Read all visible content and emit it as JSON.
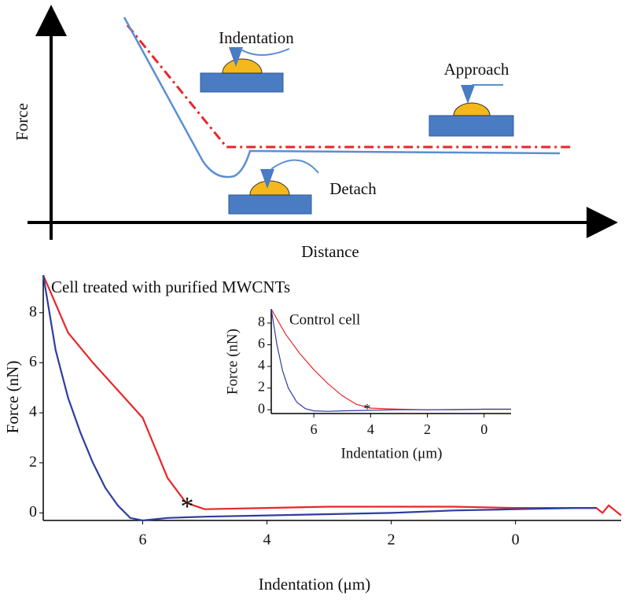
{
  "schematic": {
    "y_label": "Force",
    "x_label": "Distance",
    "labels": [
      "Indentation",
      "Approach",
      "Detach"
    ]
  },
  "chart_data": [
    {
      "type": "line",
      "title": "Cell treated with purified MWCNTs",
      "x_label": "Indentation (μm)",
      "y_label": "Force (nN)",
      "annotation": "*",
      "xlim": [
        7.6,
        -1.7
      ],
      "ylim": [
        -0.3,
        9.5
      ],
      "xticks": [
        6,
        4,
        2,
        0
      ],
      "yticks": [
        0,
        2,
        4,
        6,
        8
      ],
      "series": [
        {
          "color": "#e8262a",
          "x": [
            7.6,
            7.2,
            6.8,
            6.4,
            6.0,
            5.6,
            5.3,
            5.0,
            4,
            3,
            2,
            1,
            0,
            -1,
            -1.3,
            -1.4,
            -1.5,
            -1.7
          ],
          "values": [
            9.5,
            7.2,
            6.0,
            4.9,
            3.8,
            1.4,
            0.4,
            0.15,
            0.2,
            0.25,
            0.25,
            0.25,
            0.2,
            0.2,
            0.2,
            0.0,
            0.3,
            -0.1
          ]
        },
        {
          "color": "#2e3da0",
          "x": [
            7.6,
            7.4,
            7.2,
            7.0,
            6.8,
            6.6,
            6.4,
            6.2,
            6.0,
            5.6,
            5.0,
            4,
            3,
            2,
            1,
            0,
            -1,
            -1.3
          ],
          "values": [
            9.5,
            6.5,
            4.6,
            3.2,
            2.0,
            1.0,
            0.3,
            -0.2,
            -0.3,
            -0.2,
            -0.15,
            -0.1,
            -0.05,
            0,
            0.1,
            0.15,
            0.2,
            0.2
          ]
        }
      ]
    },
    {
      "type": "line",
      "title": "Control cell",
      "x_label": "Indentation (μm)",
      "y_label": "Force (nN)",
      "annotation": "*",
      "xlim": [
        7.5,
        -0.95
      ],
      "ylim": [
        -0.35,
        9.3
      ],
      "xticks": [
        6,
        4,
        2,
        0
      ],
      "yticks": [
        0,
        2,
        4,
        6,
        8
      ],
      "series": [
        {
          "color": "#e8262a",
          "x": [
            7.5,
            7,
            6.5,
            6,
            5.5,
            5,
            4.5,
            4,
            3,
            2,
            1,
            0,
            -0.95
          ],
          "values": [
            9.3,
            7.0,
            5.2,
            3.7,
            2.4,
            1.3,
            0.5,
            0.15,
            0.05,
            0,
            0,
            0.05,
            0.05
          ]
        },
        {
          "color": "#2e3da0",
          "x": [
            7.5,
            7.3,
            7.1,
            6.9,
            6.6,
            6.3,
            6,
            5.5,
            5,
            4,
            3,
            2,
            0,
            -0.95
          ],
          "values": [
            9.3,
            6.0,
            3.6,
            2.0,
            0.7,
            0.1,
            -0.1,
            -0.15,
            -0.1,
            -0.05,
            0,
            0,
            0.05,
            0.05
          ]
        }
      ]
    }
  ]
}
